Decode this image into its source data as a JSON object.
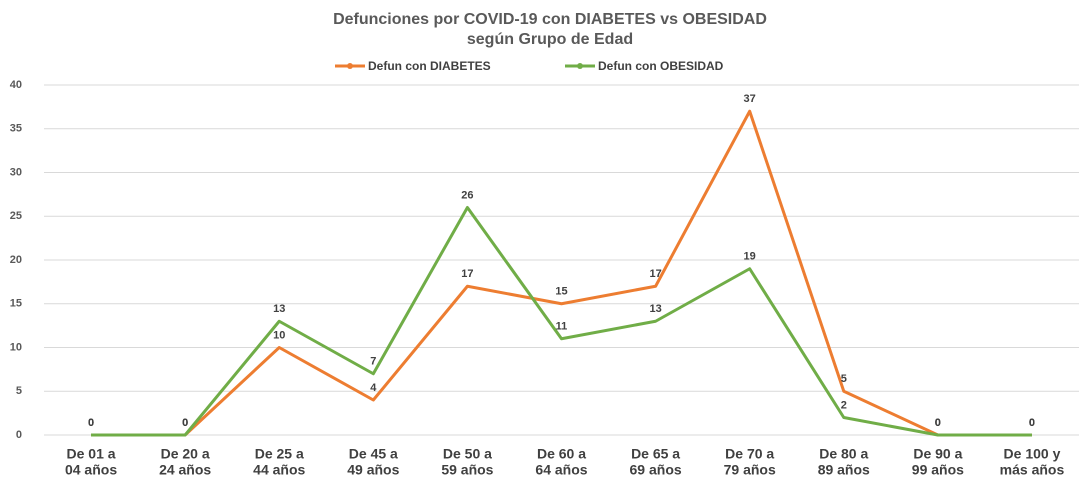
{
  "chart_data": {
    "type": "line",
    "title": [
      "Defunciones por COVID-19 con DIABETES vs OBESIDAD",
      "según Grupo de Edad"
    ],
    "categories": [
      [
        "De 01 a",
        "04 años"
      ],
      [
        "De 20 a",
        "24 años"
      ],
      [
        "De 25 a",
        "44 años"
      ],
      [
        "De 45 a",
        "49 años"
      ],
      [
        "De 50 a",
        "59 años"
      ],
      [
        "De 60 a",
        "64 años"
      ],
      [
        "De 65 a",
        "69 años"
      ],
      [
        "De 70 a",
        "79 años"
      ],
      [
        "De 80 a",
        "89 años"
      ],
      [
        "De 90 a",
        "99 años"
      ],
      [
        "De 100 y",
        "más años"
      ]
    ],
    "series": [
      {
        "name": "Defun con DIABETES",
        "color": "#ED7D31",
        "values": [
          0,
          0,
          10,
          4,
          17,
          15,
          17,
          37,
          5,
          0,
          0
        ]
      },
      {
        "name": "Defun con OBESIDAD",
        "color": "#70AD47",
        "values": [
          0,
          0,
          13,
          7,
          26,
          11,
          13,
          19,
          2,
          0,
          0
        ]
      }
    ],
    "ylim": [
      0,
      40
    ],
    "yticks": [
      0,
      5,
      10,
      15,
      20,
      25,
      30,
      35,
      40
    ],
    "grid": true,
    "legend": "top"
  }
}
